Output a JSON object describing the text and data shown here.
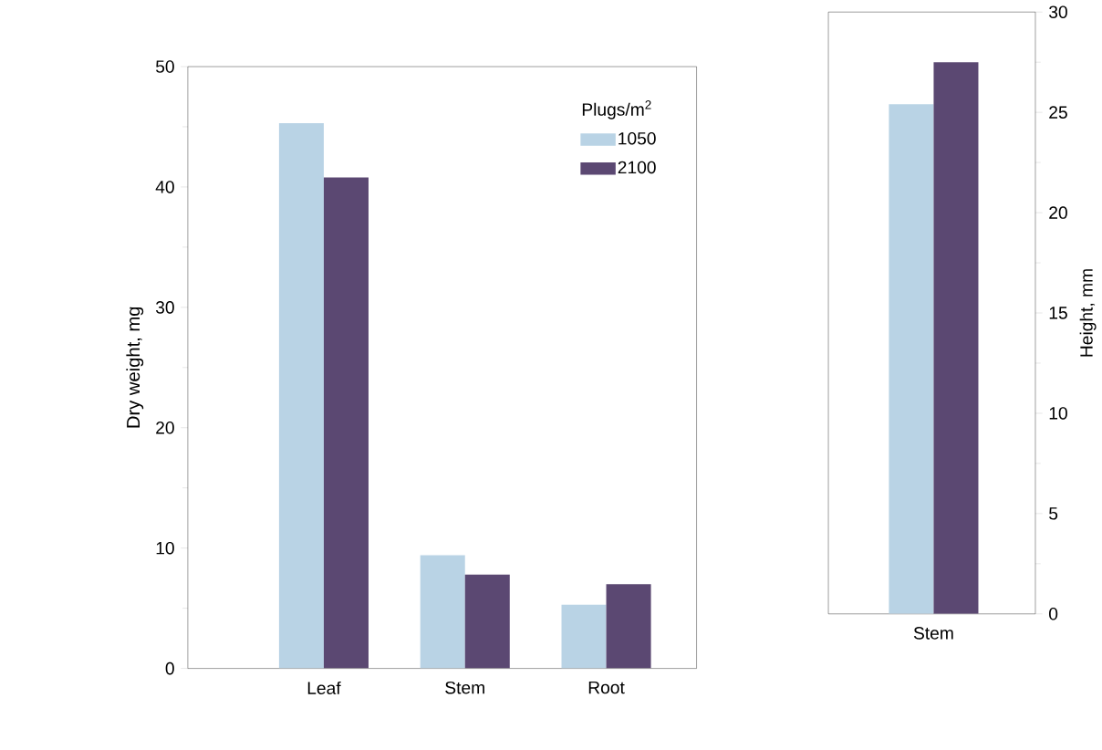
{
  "chart_data": [
    {
      "type": "bar",
      "ylabel": "Dry weight, mg",
      "legend_title": "Plugs/m$^{2}$",
      "categories": [
        "Leaf",
        "Stem",
        "Root"
      ],
      "series": [
        {
          "name": "1050",
          "color": "#b9d3e5",
          "values": [
            45.3,
            9.4,
            5.3
          ]
        },
        {
          "name": "2100",
          "color": "#5b4872",
          "values": [
            40.8,
            7.8,
            7.0
          ]
        }
      ],
      "ylim": [
        0,
        50
      ],
      "yticks": [
        0,
        10,
        20,
        30,
        40,
        50
      ],
      "grid": false,
      "legend": "top right"
    },
    {
      "type": "bar",
      "y2label": "Height, mm",
      "categories": [
        "Stem"
      ],
      "series": [
        {
          "color": "#b9d3e5",
          "values": [
            25.4
          ],
          "axis": "y2"
        },
        {
          "color": "#5b4872",
          "values": [
            27.5
          ],
          "axis": "y2"
        }
      ],
      "y2lim": [
        0,
        30
      ],
      "y2ticks": [
        0,
        5,
        10,
        15,
        20,
        25,
        30
      ],
      "grid": false
    }
  ]
}
